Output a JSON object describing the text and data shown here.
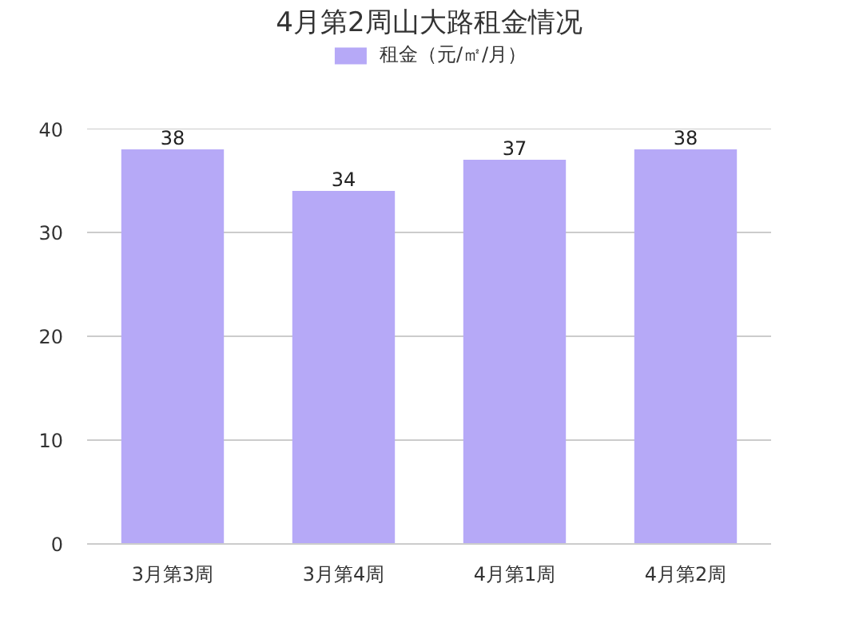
{
  "chart_data": {
    "type": "bar",
    "title": "4月第2周山大路租金情况",
    "categories": [
      "3月第3周",
      "3月第4周",
      "4月第1周",
      "4月第2周"
    ],
    "series": [
      {
        "name": "租金（元/㎡/月）",
        "color": "#b6a9f7",
        "values": [
          38,
          34,
          37,
          38
        ]
      }
    ],
    "ylim": [
      0,
      40
    ],
    "yticks": [
      0,
      10,
      20,
      30,
      40
    ],
    "grid": "y",
    "legend": "top",
    "data_labels": true
  }
}
